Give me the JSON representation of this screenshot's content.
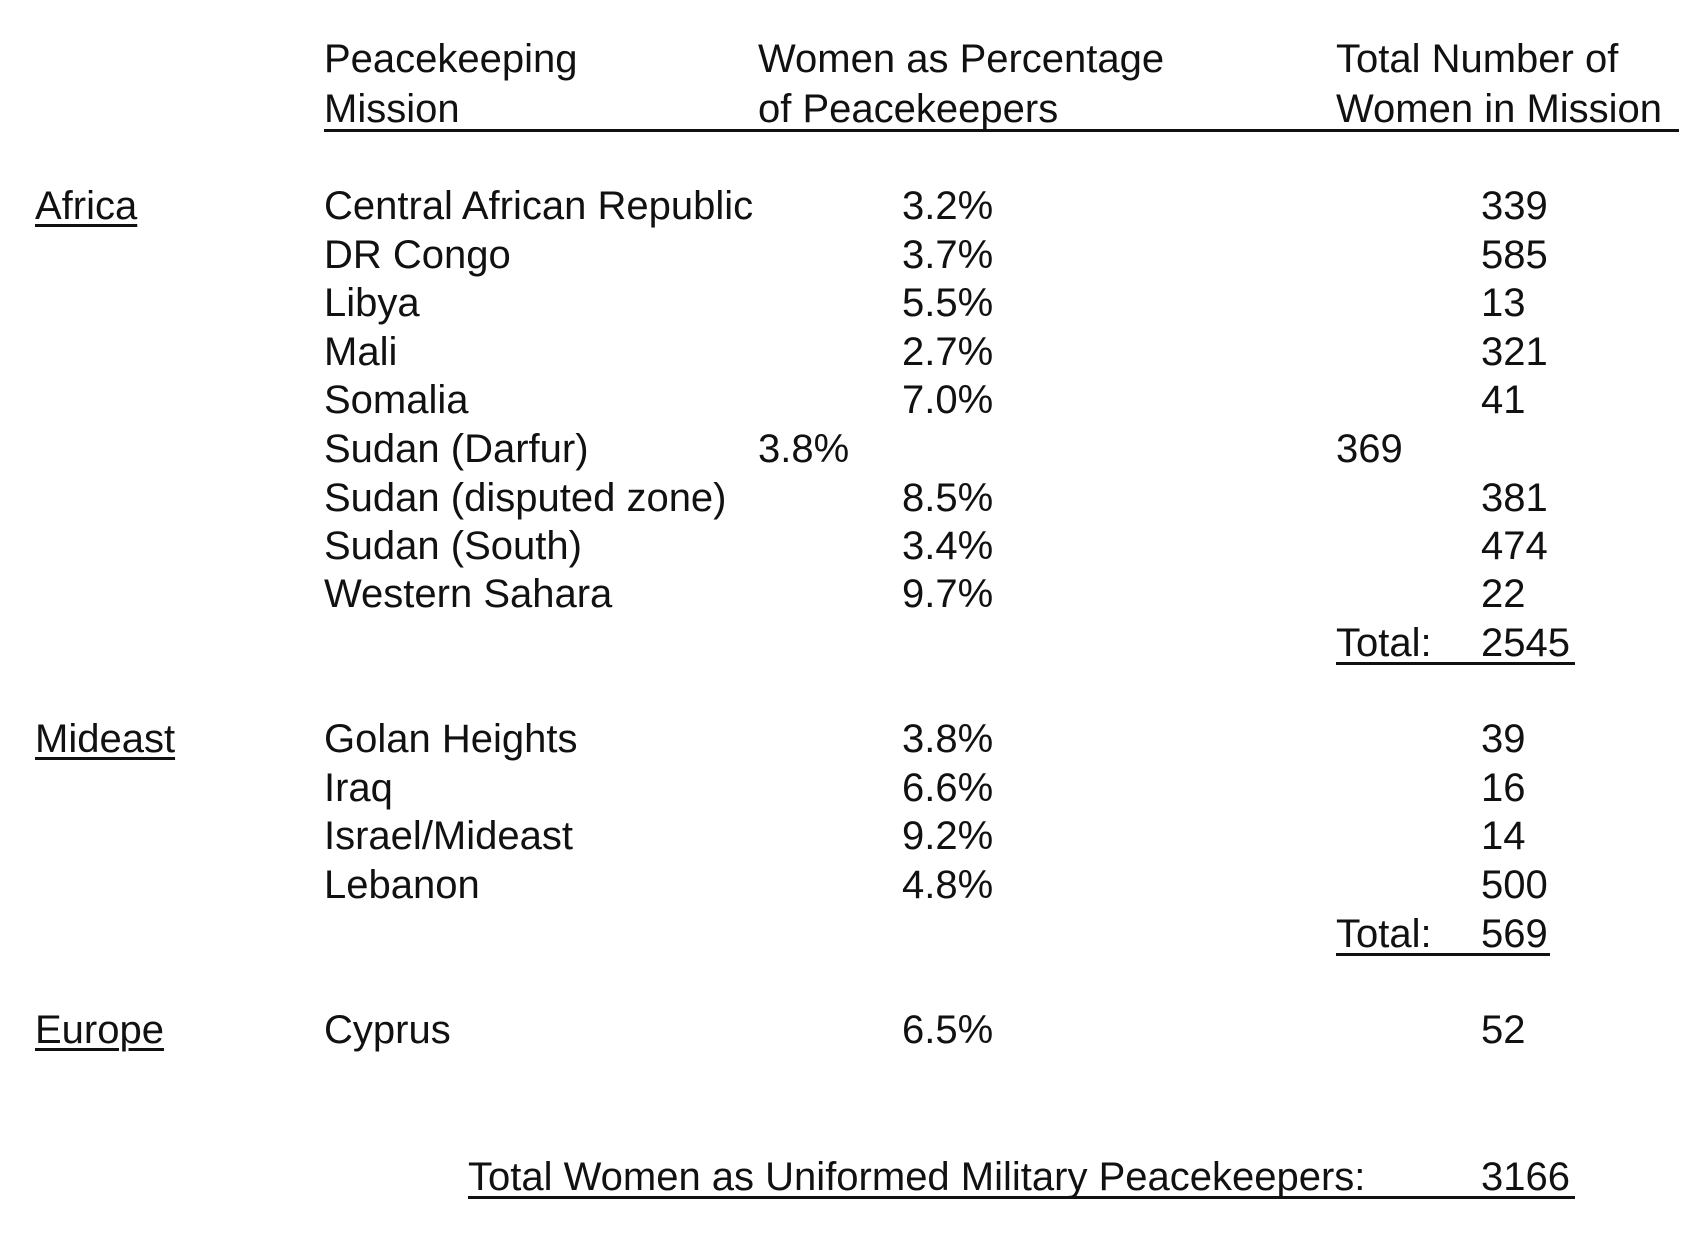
{
  "headers": {
    "mission": [
      "Peacekeeping",
      "Mission"
    ],
    "percentage": [
      "Women as Percentage",
      "of Peacekeepers"
    ],
    "total": [
      "Total Number of",
      "Women in Mission"
    ]
  },
  "regions": {
    "africa": {
      "name": "Africa",
      "rows": [
        {
          "mission": "Central African Republic",
          "pct": "3.2%",
          "count": "339"
        },
        {
          "mission": "DR Congo",
          "pct": "3.7%",
          "count": "585"
        },
        {
          "mission": "Libya",
          "pct": "5.5%",
          "count": "13"
        },
        {
          "mission": "Mali",
          "pct": "2.7%",
          "count": "321"
        },
        {
          "mission": "Somalia",
          "pct": "7.0%",
          "count": "41"
        },
        {
          "mission": "Sudan (Darfur)",
          "pct": "3.8%",
          "count": "369"
        },
        {
          "mission": "Sudan (disputed zone)",
          "pct": "8.5%",
          "count": "381"
        },
        {
          "mission": "Sudan (South)",
          "pct": "3.4%",
          "count": "474"
        },
        {
          "mission": "Western Sahara",
          "pct": "9.7%",
          "count": "22"
        }
      ],
      "total_label": "Total:",
      "total_value": "2545"
    },
    "mideast": {
      "name": "Mideast",
      "rows": [
        {
          "mission": "Golan Heights",
          "pct": "3.8%",
          "count": "39"
        },
        {
          "mission": "Iraq",
          "pct": "6.6%",
          "count": "16"
        },
        {
          "mission": "Israel/Mideast",
          "pct": "9.2%",
          "count": "14"
        },
        {
          "mission": "Lebanon",
          "pct": "4.8%",
          "count": "500"
        }
      ],
      "total_label": "Total:",
      "total_value": "569"
    },
    "europe": {
      "name": "Europe",
      "rows": [
        {
          "mission": "Cyprus",
          "pct": "6.5%",
          "count": "52"
        }
      ]
    }
  },
  "grand_total": {
    "label": "Total Women as Uniformed Military Peacekeepers:",
    "value": "3166"
  }
}
